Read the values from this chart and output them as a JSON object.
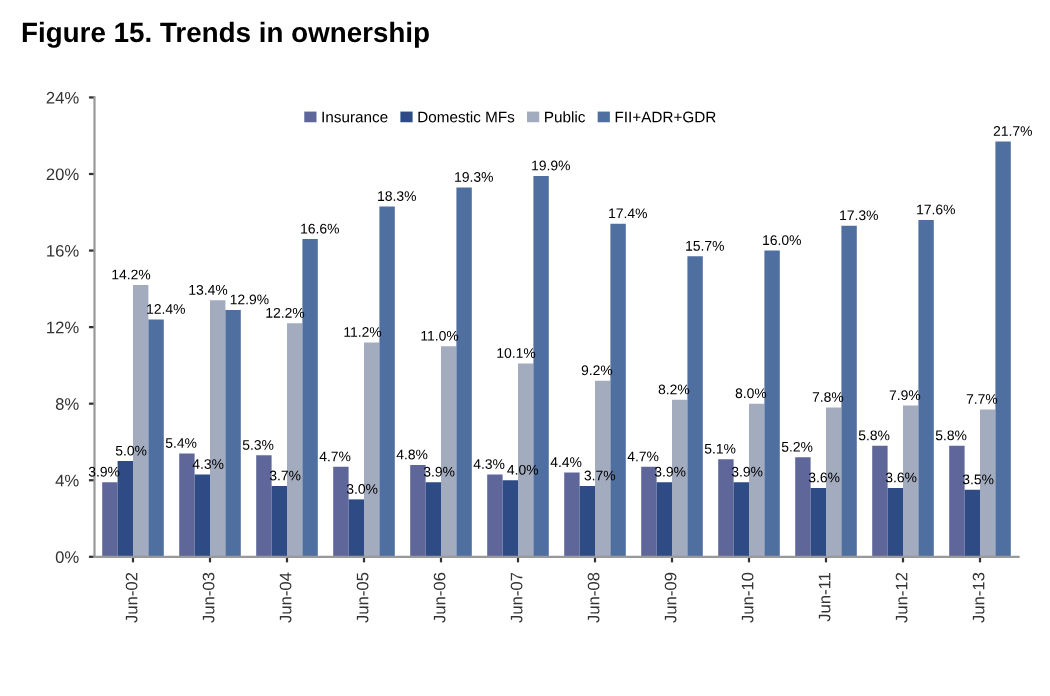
{
  "chart_data": {
    "type": "bar",
    "title": "Figure 15. Trends in ownership",
    "categories": [
      "Jun-02",
      "Jun-03",
      "Jun-04",
      "Jun-05",
      "Jun-06",
      "Jun-07",
      "Jun-08",
      "Jun-09",
      "Jun-10",
      "Jun-11",
      "Jun-12",
      "Jun-13"
    ],
    "series": [
      {
        "name": "Insurance",
        "color": "#5f6699",
        "values": [
          3.9,
          5.4,
          5.3,
          4.7,
          4.8,
          4.3,
          4.4,
          4.7,
          5.1,
          5.2,
          5.8,
          5.8
        ],
        "value_labels": [
          "3.9%",
          "5.4%",
          "5.3%",
          "4.7%",
          "4.8%",
          "4.3%",
          "4.4%",
          "4.7%",
          "5.1%",
          "5.2%",
          "5.8%",
          "5.8%"
        ]
      },
      {
        "name": "Domestic MFs",
        "color": "#2e4b85",
        "values": [
          5.0,
          4.3,
          3.7,
          3.0,
          3.9,
          4.0,
          3.7,
          3.9,
          3.9,
          3.6,
          3.6,
          3.5
        ],
        "value_labels": [
          "5.0%",
          "4.3%",
          "3.7%",
          "3.0%",
          "3.9%",
          "4.0%",
          "3.7%",
          "3.9%",
          "3.9%",
          "3.6%",
          "3.6%",
          "3.5%"
        ]
      },
      {
        "name": "Public",
        "color": "#a3abbf",
        "values": [
          14.2,
          13.4,
          12.2,
          11.2,
          11.0,
          10.1,
          9.2,
          8.2,
          8.0,
          7.8,
          7.9,
          7.7
        ],
        "value_labels": [
          "14.2%",
          "13.4%",
          "12.2%",
          "11.2%",
          "11.0%",
          "10.1%",
          "9.2%",
          "8.2%",
          "8.0%",
          "7.8%",
          "7.9%",
          "7.7%"
        ]
      },
      {
        "name": "FII+ADR+GDR",
        "color": "#4f6fa0",
        "values": [
          12.4,
          12.9,
          16.6,
          18.3,
          19.3,
          19.9,
          17.4,
          15.7,
          16.0,
          17.3,
          17.6,
          21.7
        ],
        "value_labels": [
          "12.4%",
          "12.9%",
          "16.6%",
          "18.3%",
          "19.3%",
          "19.9%",
          "17.4%",
          "15.7%",
          "16.0%",
          "17.3%",
          "17.6%",
          "21.7%"
        ]
      }
    ],
    "ylim": [
      0,
      24
    ],
    "yticks": [
      {
        "value": 0,
        "label": "0%"
      },
      {
        "value": 4,
        "label": "4%"
      },
      {
        "value": 8,
        "label": "8%"
      },
      {
        "value": 12,
        "label": "12%"
      },
      {
        "value": 16,
        "label": "16%"
      },
      {
        "value": 20,
        "label": "20%"
      },
      {
        "value": 24,
        "label": "24%"
      }
    ],
    "legend": "top",
    "grid": false
  }
}
